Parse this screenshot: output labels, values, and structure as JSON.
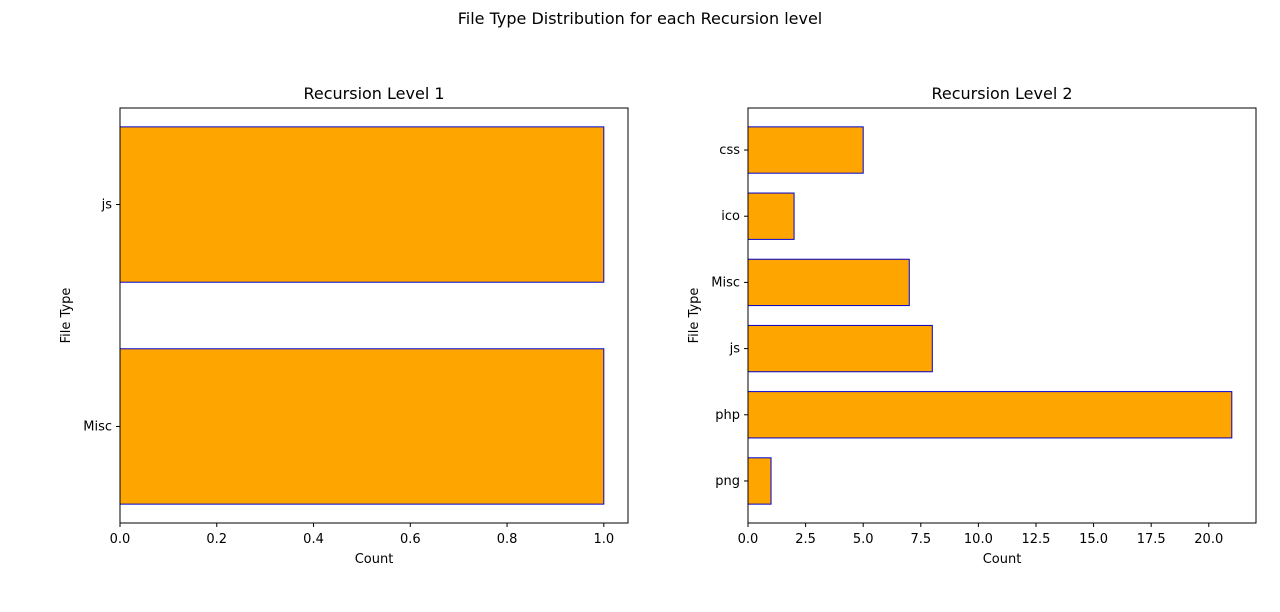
{
  "figure": {
    "suptitle": "File Type Distribution for each Recursion level"
  },
  "style": {
    "bar_fill": "#FFA500",
    "bar_edge": "#0000CD"
  },
  "chart_data": [
    {
      "type": "bar",
      "orientation": "horizontal",
      "title": "Recursion Level 1",
      "xlabel": "Count",
      "ylabel": "File Type",
      "categories": [
        "js",
        "Misc"
      ],
      "values": [
        1,
        1
      ],
      "xlim": [
        0,
        1.05
      ],
      "xticks": [
        0.0,
        0.2,
        0.4,
        0.6,
        0.8,
        1.0
      ],
      "xtick_labels": [
        "0.0",
        "0.2",
        "0.4",
        "0.6",
        "0.8",
        "1.0"
      ],
      "grid": false
    },
    {
      "type": "bar",
      "orientation": "horizontal",
      "title": "Recursion Level 2",
      "xlabel": "Count",
      "ylabel": "File Type",
      "categories": [
        "css",
        "ico",
        "Misc",
        "js",
        "php",
        "png"
      ],
      "values": [
        5,
        2,
        7,
        8,
        21,
        1
      ],
      "xlim": [
        0,
        22.05
      ],
      "xticks": [
        0.0,
        2.5,
        5.0,
        7.5,
        10.0,
        12.5,
        15.0,
        17.5,
        20.0
      ],
      "xtick_labels": [
        "0.0",
        "2.5",
        "5.0",
        "7.5",
        "10.0",
        "12.5",
        "15.0",
        "17.5",
        "20.0"
      ],
      "grid": false
    }
  ]
}
